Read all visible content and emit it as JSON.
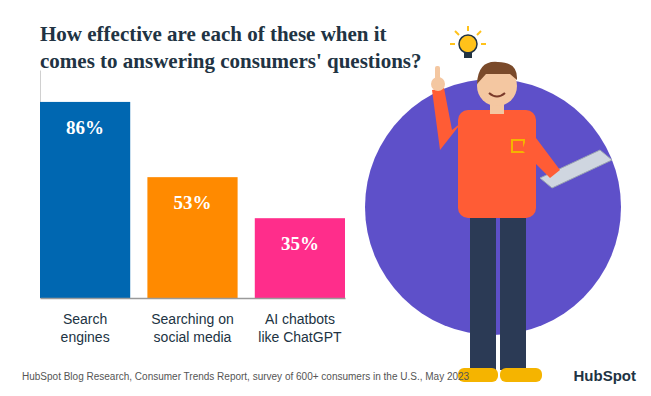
{
  "chart_data": {
    "type": "bar",
    "title": "How effective are each of these when it\ncomes to answering consumers' questions?",
    "categories": [
      "Search\nengines",
      "Searching on\nsocial media",
      "AI chatbots\nlike ChatGPT"
    ],
    "values": [
      86,
      53,
      35
    ],
    "value_labels": [
      "86%",
      "53%",
      "35%"
    ],
    "colors": [
      "#0067b1",
      "#ff8a00",
      "#ff2d8b"
    ],
    "ylim": [
      0,
      100
    ],
    "data_labels": true,
    "tick_labels": "x",
    "annotations": [
      "HubSpot Blog Research, Consumer Trends Report, survey of 600+ consumers in the U.S., May 2023",
      "HubSpot"
    ]
  }
}
